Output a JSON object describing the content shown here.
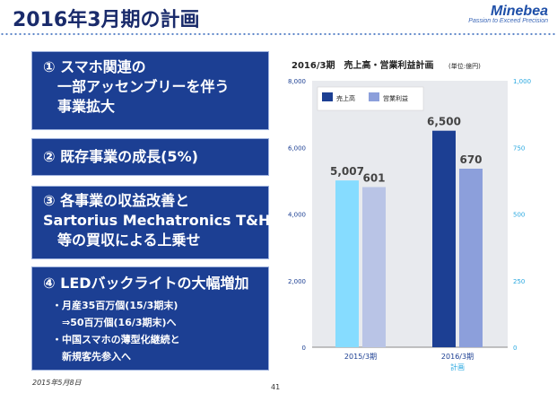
{
  "slide": {
    "title": "2016年3月期の計画",
    "logo_name": "Minebea",
    "logo_tagline": "Passion to Exceed Precision",
    "date": "2015年5月8日",
    "page": "41"
  },
  "panels": [
    {
      "lines": [
        "① スマホ関連の",
        "　一部アッセンブリーを伴う",
        "　事業拡大"
      ]
    },
    {
      "lines": [
        "② 既存事業の成長(5%)"
      ]
    },
    {
      "lines": [
        "③ 各事業の収益改善と",
        "Sartorius Mechatronics T&H",
        "　等の買収による上乗せ"
      ]
    },
    {
      "lines": [
        "④ LEDバックライトの大幅増加"
      ],
      "bullets": [
        "・月産35百万個(15/3期末)",
        "　⇒50百万個(16/3期末)へ",
        "・中国スマホの薄型化継続と",
        "　新規客先参入へ"
      ]
    }
  ],
  "chart_data": {
    "type": "bar",
    "title": "2016/3期　売上高・営業利益計画",
    "unit": "(単位:億円)",
    "categories": [
      "2015/3期",
      "2016/3期"
    ],
    "category_sublabels": [
      "",
      "計画"
    ],
    "series": [
      {
        "name": "売上高",
        "axis": "left",
        "values": [
          5007,
          6500
        ],
        "labels": [
          "5,007",
          "6,500"
        ],
        "colors": [
          "#86dcff",
          "#1c3f93"
        ]
      },
      {
        "name": "営業利益",
        "axis": "right",
        "values": [
          601,
          670
        ],
        "labels": [
          "601",
          "670"
        ],
        "colors": [
          "#b9c4e6",
          "#8c9fdb"
        ]
      }
    ],
    "left_axis": {
      "min": 0,
      "max": 8000,
      "ticks": [
        0,
        2000,
        4000,
        6000,
        8000
      ],
      "tick_labels": [
        "0",
        "2,000",
        "4,000",
        "6,000",
        "8,000"
      ]
    },
    "right_axis": {
      "min": 0,
      "max": 1000,
      "ticks": [
        0,
        250,
        500,
        750,
        1000
      ],
      "tick_labels": [
        "0",
        "250",
        "500",
        "750",
        "1,000"
      ]
    },
    "legend_position": "top-left",
    "colors": {
      "left_axis_text": "#1c3f93",
      "right_axis_text": "#29a8e0",
      "category_text": "#1c3f93",
      "sublabel_text": "#29a8e0",
      "label_text": "#444444",
      "plot_bg": "#e8eaee"
    }
  }
}
